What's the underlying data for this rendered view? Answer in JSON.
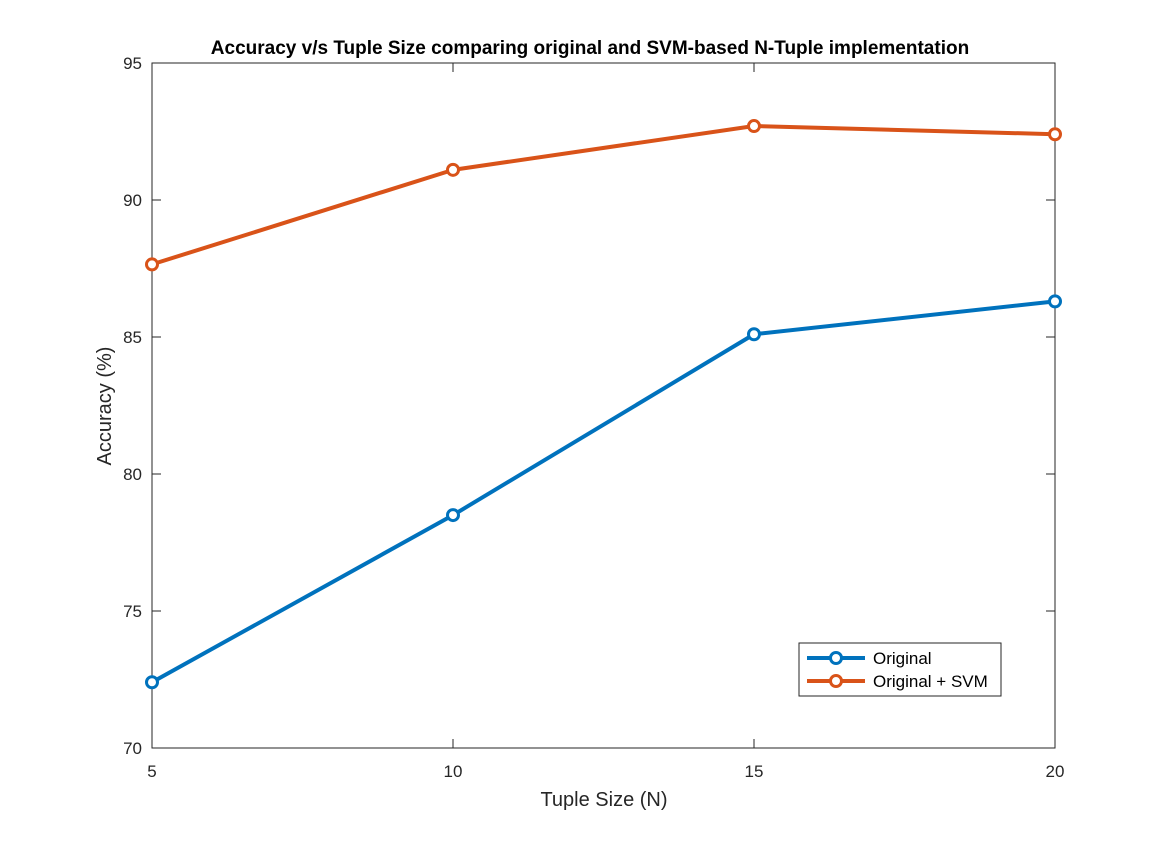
{
  "chart_data": {
    "type": "line",
    "title": "Accuracy v/s Tuple Size comparing original and SVM-based N-Tuple implementation",
    "xlabel": "Tuple Size (N)",
    "ylabel": "Accuracy (%)",
    "x": [
      5,
      10,
      15,
      20
    ],
    "xlim": [
      5,
      20
    ],
    "ylim": [
      70,
      95
    ],
    "xticks": [
      "5",
      "10",
      "15",
      "20"
    ],
    "yticks": [
      "70",
      "75",
      "80",
      "85",
      "90",
      "95"
    ],
    "grid": false,
    "legend_position": "bottom-right",
    "series": [
      {
        "name": "Original",
        "color": "#0072BD",
        "marker": "circle",
        "values": [
          72.4,
          78.5,
          85.1,
          86.3
        ]
      },
      {
        "name": "Original + SVM",
        "color": "#D95319",
        "marker": "circle",
        "values": [
          87.65,
          91.1,
          92.7,
          92.4
        ]
      }
    ]
  }
}
